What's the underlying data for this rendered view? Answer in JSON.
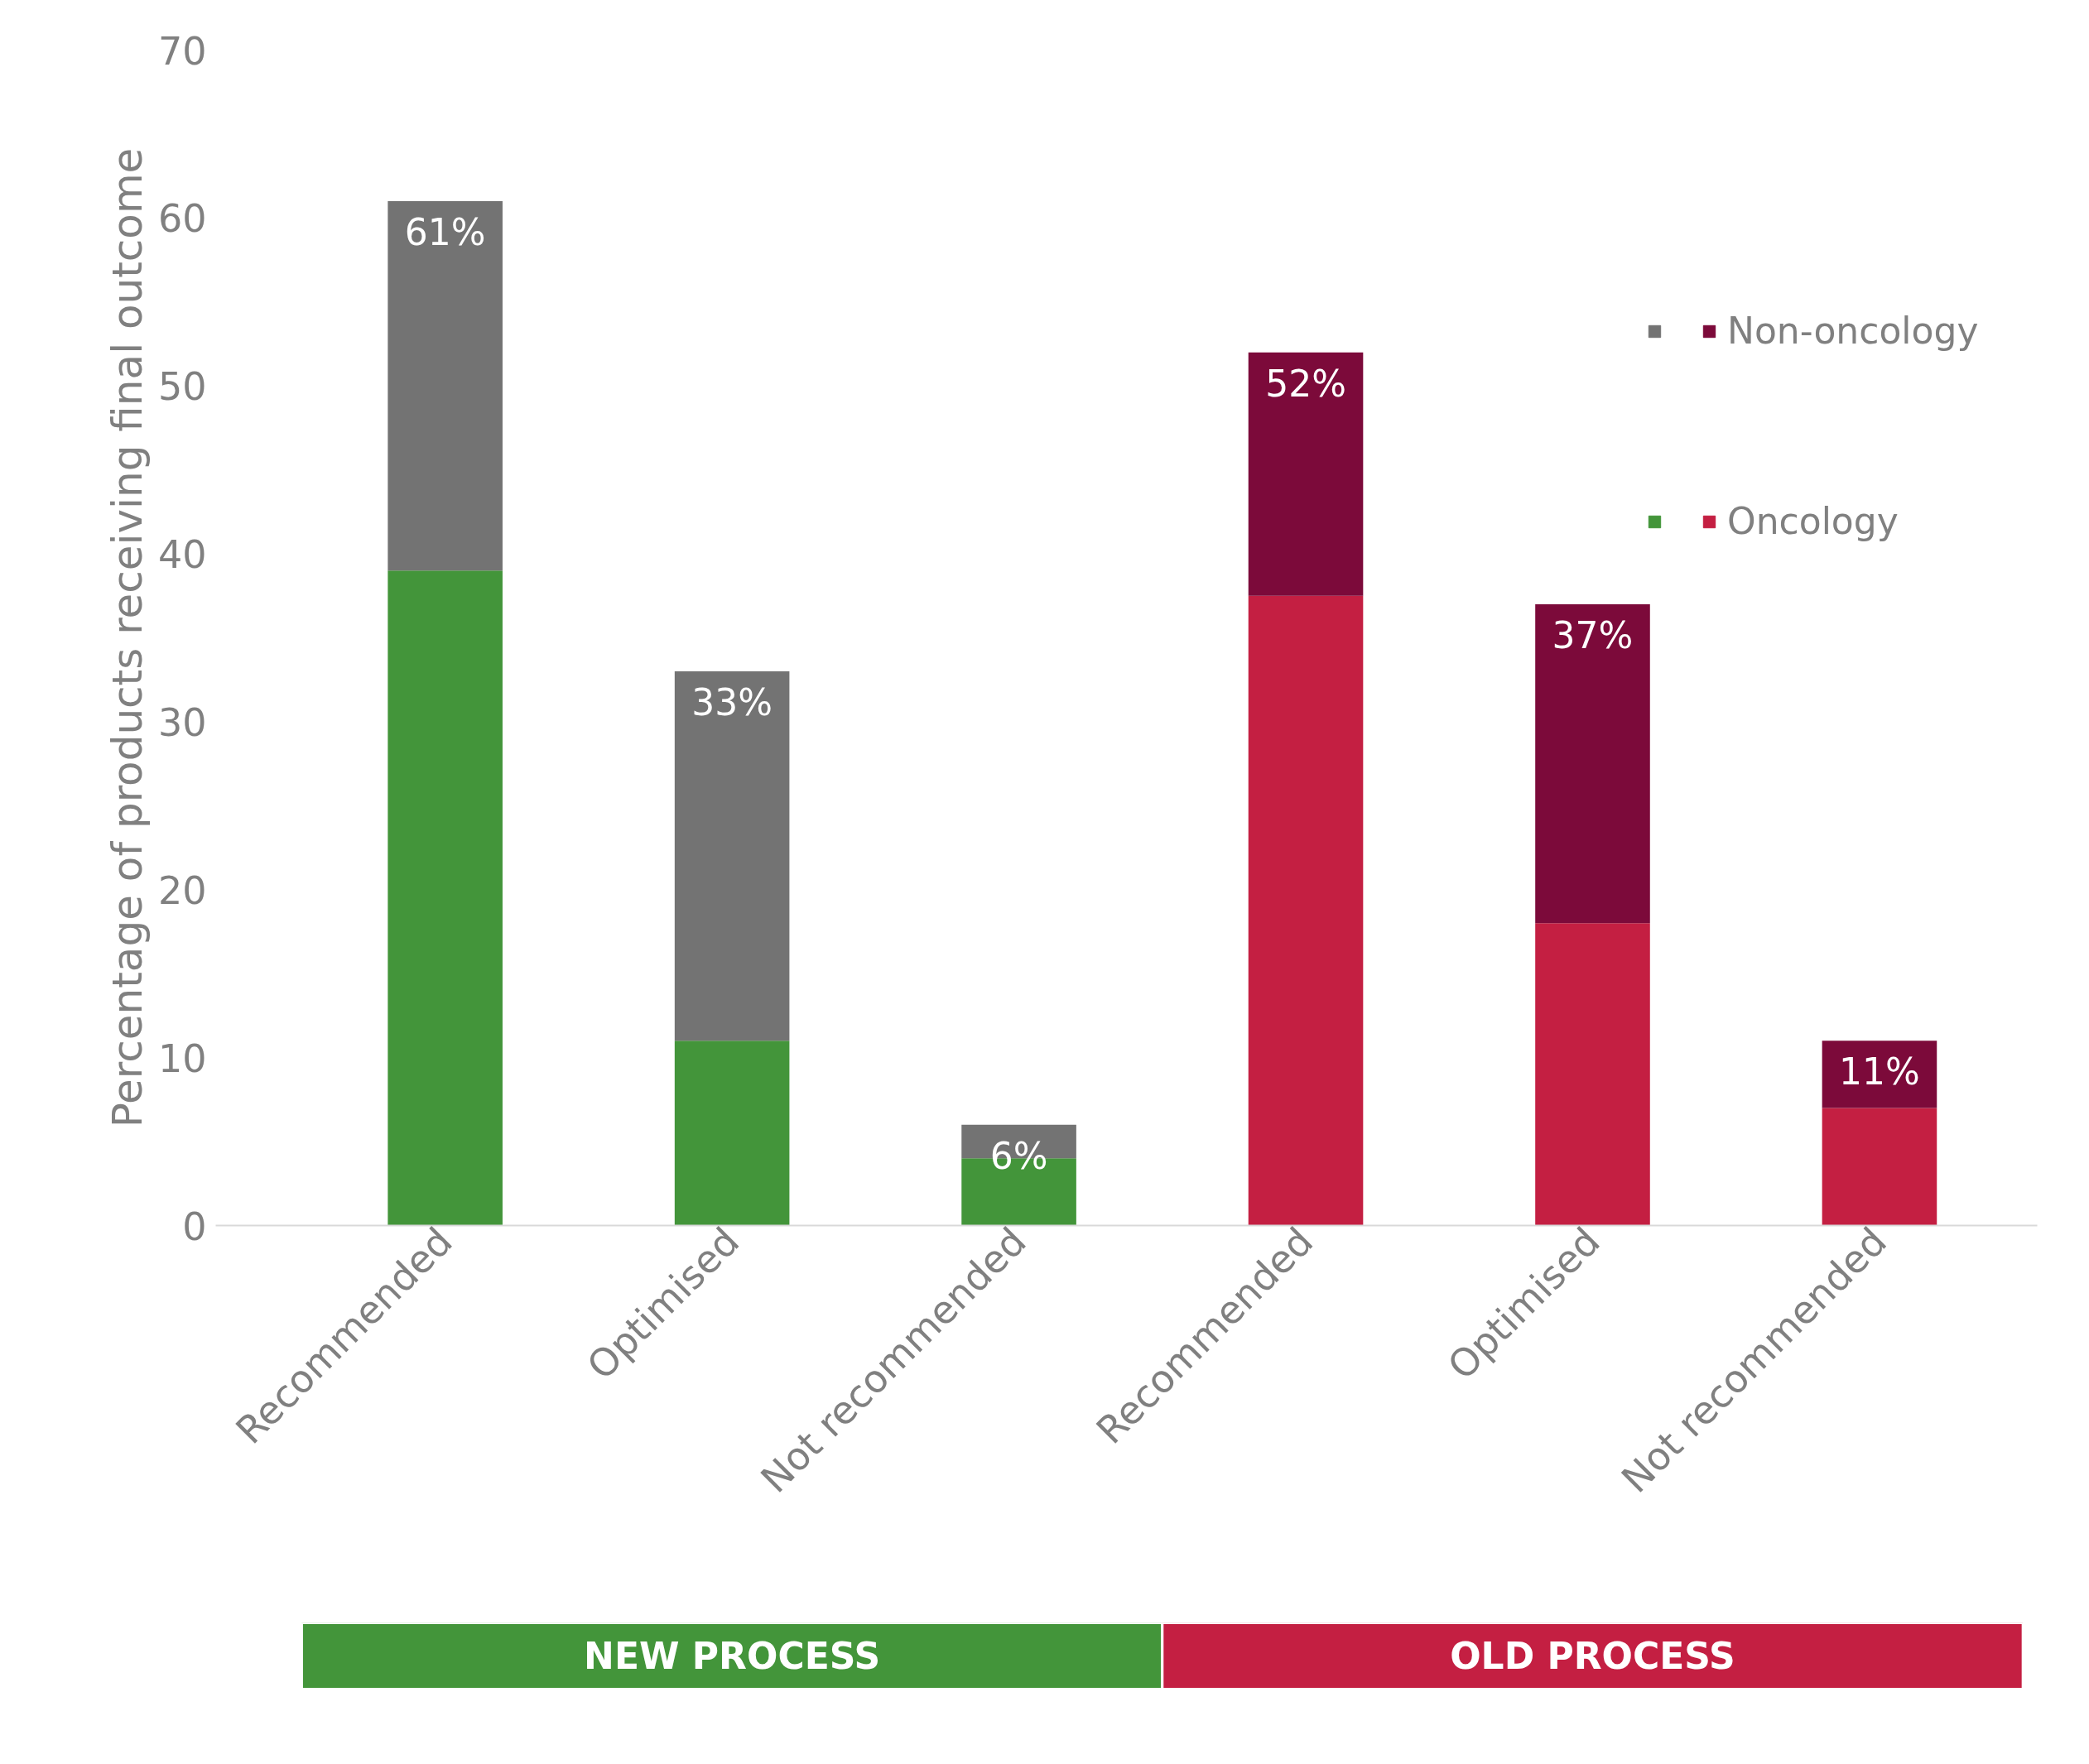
{
  "chart_data": {
    "type": "bar",
    "stacked": true,
    "ylabel": "Percentage of products receiving final outcome",
    "categories": [
      "Recommended",
      "Optimised",
      "Not recommended",
      "Recommended",
      "Optimised",
      "Not recommended"
    ],
    "series": [
      {
        "name": "Oncology",
        "colors": [
          "#43953a",
          "#43953a",
          "#43953a",
          "#c41f42",
          "#c41f42",
          "#c41f42"
        ],
        "values": [
          39,
          11,
          4,
          37.5,
          18,
          7
        ]
      },
      {
        "name": "Non-oncology",
        "colors": [
          "#737373",
          "#737373",
          "#737373",
          "#7c0a3a",
          "#7c0a3a",
          "#7c0a3a"
        ],
        "values": [
          22,
          22,
          2,
          14.5,
          19,
          4
        ]
      }
    ],
    "totals": [
      "61%",
      "33%",
      "6%",
      "52%",
      "37%",
      "11%"
    ],
    "ylim": [
      0,
      70
    ],
    "yticks": [
      0,
      10,
      20,
      30,
      40,
      50,
      60,
      70
    ],
    "grid": false,
    "legend": "top right",
    "annotations": [
      "NEW PROCESS",
      "OLD PROCESS"
    ]
  }
}
